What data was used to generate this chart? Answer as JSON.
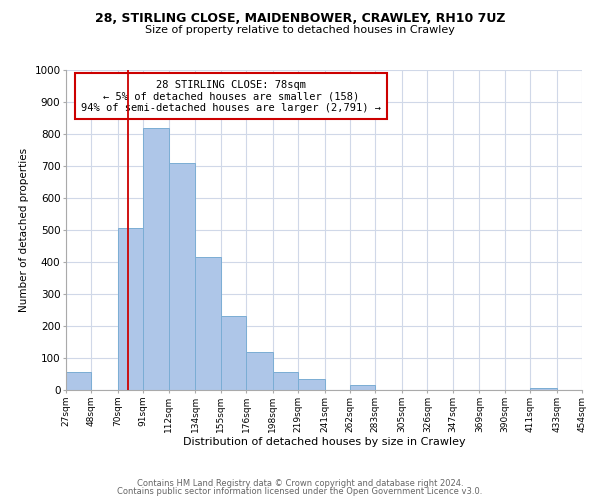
{
  "title_line1": "28, STIRLING CLOSE, MAIDENBOWER, CRAWLEY, RH10 7UZ",
  "title_line2": "Size of property relative to detached houses in Crawley",
  "xlabel": "Distribution of detached houses by size in Crawley",
  "ylabel": "Number of detached properties",
  "bin_edges": [
    27,
    48,
    70,
    91,
    112,
    134,
    155,
    176,
    198,
    219,
    241,
    262,
    283,
    305,
    326,
    347,
    369,
    390,
    411,
    433,
    454
  ],
  "bar_heights": [
    55,
    0,
    505,
    820,
    710,
    415,
    230,
    118,
    57,
    35,
    0,
    15,
    0,
    0,
    0,
    0,
    0,
    0,
    5,
    0
  ],
  "bar_color": "#aec6e8",
  "bar_edge_color": "#7badd4",
  "vline_x": 78,
  "vline_color": "#cc0000",
  "annotation_title": "28 STIRLING CLOSE: 78sqm",
  "annotation_line1": "← 5% of detached houses are smaller (158)",
  "annotation_line2": "94% of semi-detached houses are larger (2,791) →",
  "annotation_box_edge_color": "#cc0000",
  "annotation_box_face_color": "#ffffff",
  "ylim": [
    0,
    1000
  ],
  "tick_labels": [
    "27sqm",
    "48sqm",
    "70sqm",
    "91sqm",
    "112sqm",
    "134sqm",
    "155sqm",
    "176sqm",
    "198sqm",
    "219sqm",
    "241sqm",
    "262sqm",
    "283sqm",
    "305sqm",
    "326sqm",
    "347sqm",
    "369sqm",
    "390sqm",
    "411sqm",
    "433sqm",
    "454sqm"
  ],
  "yticks": [
    0,
    100,
    200,
    300,
    400,
    500,
    600,
    700,
    800,
    900,
    1000
  ],
  "footer_line1": "Contains HM Land Registry data © Crown copyright and database right 2024.",
  "footer_line2": "Contains public sector information licensed under the Open Government Licence v3.0.",
  "background_color": "#ffffff",
  "grid_color": "#d0d8e8"
}
